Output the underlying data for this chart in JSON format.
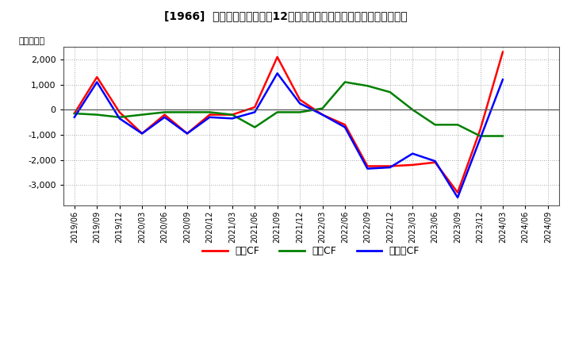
{
  "title": "[1966]  キャッシュフローの12か月移動合計の対前年同期増減額の推移",
  "ylabel": "（百万円）",
  "background_color": "#ffffff",
  "plot_bg_color": "#ffffff",
  "x_labels": [
    "2019/06",
    "2019/09",
    "2019/12",
    "2020/03",
    "2020/06",
    "2020/09",
    "2020/12",
    "2021/03",
    "2021/06",
    "2021/09",
    "2021/12",
    "2022/03",
    "2022/06",
    "2022/09",
    "2022/12",
    "2023/03",
    "2023/06",
    "2023/09",
    "2023/12",
    "2024/03",
    "2024/06",
    "2024/09"
  ],
  "営業CF": [
    -150,
    1300,
    -100,
    -950,
    -200,
    -950,
    -200,
    -200,
    100,
    2100,
    400,
    -200,
    -600,
    -2250,
    -2250,
    -2200,
    -2100,
    -3300,
    -800,
    2300,
    null,
    null
  ],
  "投資CF": [
    -150,
    -200,
    -300,
    -200,
    -100,
    -100,
    -100,
    -200,
    -700,
    -100,
    -100,
    50,
    1100,
    950,
    700,
    0,
    -600,
    -600,
    -1050,
    -1050,
    null,
    null
  ],
  "フリーCF": [
    -300,
    1100,
    -350,
    -950,
    -300,
    -950,
    -300,
    -350,
    -100,
    1450,
    250,
    -200,
    -700,
    -2350,
    -2300,
    -1750,
    -2050,
    -3500,
    -1150,
    1200,
    null,
    null
  ],
  "series_colors": {
    "営業CF": "#ff0000",
    "投資CF": "#008000",
    "フリーCF": "#0000ff"
  },
  "ylim": [
    -3800,
    2500
  ],
  "yticks": [
    -3000,
    -2000,
    -1000,
    0,
    1000,
    2000
  ],
  "grid_color": "#aaaaaa",
  "zero_line_color": "#555555",
  "linewidth": 1.8
}
